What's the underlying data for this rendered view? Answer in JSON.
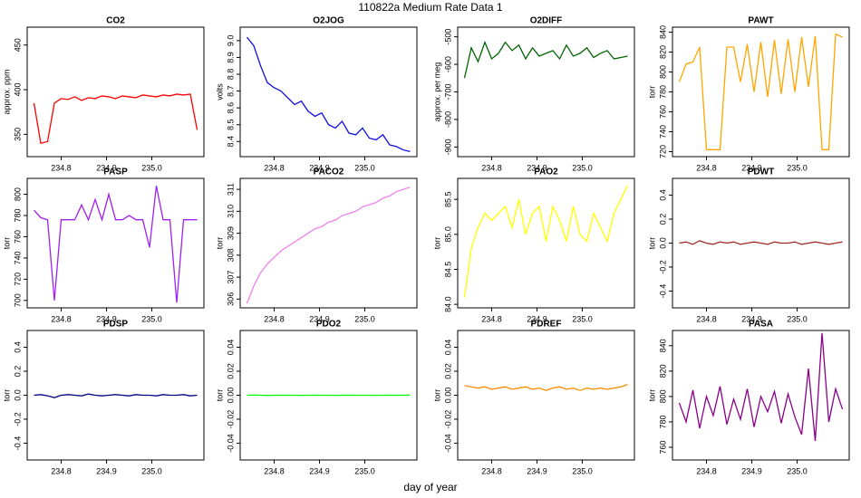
{
  "title": "110822a   Medium Rate Data 1",
  "xlabel": "day of year",
  "chart_data": [
    {
      "type": "line",
      "title": "CO2",
      "ylabel": "approx. ppm",
      "color": "#ff0000",
      "xlim": [
        234.725,
        235.115
      ],
      "xticks": [
        234.8,
        234.9,
        {
          "value": 235,
          "label": "235.0"
        }
      ],
      "ylim": [
        325,
        470
      ],
      "yticks": [
        350,
        400,
        450
      ],
      "x": [
        234.74,
        234.755,
        234.77,
        234.785,
        234.8,
        234.815,
        234.83,
        234.845,
        234.86,
        234.875,
        234.89,
        234.905,
        234.92,
        234.935,
        234.95,
        234.965,
        234.98,
        234.995,
        235.01,
        235.025,
        235.04,
        235.055,
        235.07,
        235.085,
        235.1
      ],
      "values": [
        385,
        340,
        342,
        385,
        390,
        389,
        392,
        388,
        391,
        390,
        393,
        392,
        390,
        393,
        392,
        391,
        394,
        393,
        392,
        394,
        393,
        395,
        394,
        395,
        355
      ]
    },
    {
      "type": "line",
      "title": "O2JOG",
      "ylabel": "volts",
      "color": "#1010e0",
      "xlim": [
        234.725,
        235.115
      ],
      "xticks": [
        234.8,
        234.9,
        {
          "value": 235,
          "label": "235.0"
        }
      ],
      "ylim": [
        8.31,
        9.08
      ],
      "yticks": [
        8.4,
        8.5,
        8.6,
        8.7,
        8.8,
        8.9,
        {
          "value": 9,
          "label": "9.0"
        }
      ],
      "x": [
        234.74,
        234.755,
        234.77,
        234.785,
        234.8,
        234.815,
        234.83,
        234.845,
        234.86,
        234.875,
        234.89,
        234.905,
        234.92,
        234.935,
        234.95,
        234.965,
        234.98,
        234.995,
        235.01,
        235.025,
        235.04,
        235.055,
        235.07,
        235.085,
        235.1
      ],
      "values": [
        9.02,
        8.97,
        8.85,
        8.75,
        8.72,
        8.7,
        8.66,
        8.62,
        8.64,
        8.58,
        8.55,
        8.57,
        8.5,
        8.48,
        8.52,
        8.45,
        8.44,
        8.48,
        8.42,
        8.41,
        8.44,
        8.38,
        8.37,
        8.35,
        8.34
      ]
    },
    {
      "type": "line",
      "title": "O2DIFF",
      "ylabel": "approx. per meg",
      "color": "#006400",
      "xlim": [
        234.725,
        235.115
      ],
      "xticks": [
        234.8,
        234.9,
        {
          "value": 235,
          "label": "235.0"
        }
      ],
      "ylim": [
        -935,
        -465
      ],
      "yticks": [
        -900,
        -800,
        -700,
        -600,
        -500
      ],
      "x": [
        234.74,
        234.755,
        234.77,
        234.785,
        234.8,
        234.815,
        234.83,
        234.845,
        234.86,
        234.875,
        234.89,
        234.905,
        234.92,
        234.935,
        234.95,
        234.965,
        234.98,
        234.995,
        235.01,
        235.025,
        235.04,
        235.055,
        235.07,
        235.085,
        235.1
      ],
      "values": [
        -650,
        -540,
        -590,
        -520,
        -580,
        -560,
        -520,
        -550,
        -530,
        -580,
        -540,
        -570,
        -560,
        -550,
        -580,
        -530,
        -570,
        -560,
        -540,
        -575,
        -560,
        -550,
        -580,
        -575,
        -570
      ]
    },
    {
      "type": "line",
      "title": "PAWT",
      "ylabel": "torr",
      "color": "#ffa500",
      "xlim": [
        234.725,
        235.115
      ],
      "xticks": [
        234.8,
        234.9,
        {
          "value": 235,
          "label": "235.0"
        }
      ],
      "ylim": [
        715,
        845
      ],
      "yticks": [
        720,
        740,
        760,
        780,
        800,
        820,
        840
      ],
      "x": [
        234.74,
        234.755,
        234.77,
        234.785,
        234.8,
        234.815,
        234.83,
        234.845,
        234.86,
        234.875,
        234.89,
        234.905,
        234.92,
        234.935,
        234.95,
        234.965,
        234.98,
        234.995,
        235.01,
        235.025,
        235.04,
        235.055,
        235.07,
        235.085,
        235.1
      ],
      "values": [
        790,
        808,
        810,
        825,
        722,
        722,
        722,
        825,
        825,
        790,
        828,
        780,
        830,
        775,
        832,
        778,
        833,
        780,
        835,
        785,
        836,
        722,
        722,
        838,
        835
      ]
    },
    {
      "type": "line",
      "title": "PASP",
      "ylabel": "torr",
      "color": "#a020f0",
      "xlim": [
        234.725,
        235.115
      ],
      "xticks": [
        234.8,
        234.9,
        {
          "value": 235,
          "label": "235.0"
        }
      ],
      "ylim": [
        693,
        815
      ],
      "yticks": [
        700,
        720,
        740,
        760,
        780,
        800
      ],
      "x": [
        234.74,
        234.755,
        234.77,
        234.785,
        234.8,
        234.815,
        234.83,
        234.845,
        234.86,
        234.875,
        234.89,
        234.905,
        234.92,
        234.935,
        234.95,
        234.965,
        234.98,
        234.995,
        235.01,
        235.025,
        235.04,
        235.055,
        235.07,
        235.085,
        235.1
      ],
      "values": [
        785,
        778,
        776,
        700,
        776,
        776,
        776,
        790,
        776,
        795,
        776,
        800,
        776,
        776,
        780,
        776,
        776,
        750,
        808,
        776,
        776,
        698,
        776,
        776,
        776
      ]
    },
    {
      "type": "line",
      "title": "PACO2",
      "ylabel": "torr",
      "color": "#ee82ee",
      "xlim": [
        234.725,
        235.115
      ],
      "xticks": [
        234.8,
        234.9,
        {
          "value": 235,
          "label": "235.0"
        }
      ],
      "ylim": [
        305.6,
        311.5
      ],
      "yticks": [
        306,
        307,
        308,
        309,
        310,
        311
      ],
      "x": [
        234.74,
        234.755,
        234.77,
        234.785,
        234.8,
        234.815,
        234.83,
        234.845,
        234.86,
        234.875,
        234.89,
        234.905,
        234.92,
        234.935,
        234.95,
        234.965,
        234.98,
        234.995,
        235.01,
        235.025,
        235.04,
        235.055,
        235.07,
        235.085,
        235.1
      ],
      "values": [
        305.8,
        306.6,
        307.2,
        307.6,
        307.9,
        308.2,
        308.4,
        308.6,
        308.8,
        309,
        309.2,
        309.3,
        309.5,
        309.6,
        309.8,
        309.9,
        310,
        310.2,
        310.3,
        310.4,
        310.6,
        310.7,
        310.9,
        311,
        311.1
      ]
    },
    {
      "type": "line",
      "title": "PAO2",
      "ylabel": "torr",
      "color": "#ffff00",
      "xlim": [
        234.725,
        235.115
      ],
      "xticks": [
        234.8,
        234.9,
        {
          "value": 235,
          "label": "235.0"
        }
      ],
      "ylim": [
        83.95,
        85.8
      ],
      "yticks": [
        {
          "value": 84,
          "label": "84.0"
        },
        84.5,
        {
          "value": 85,
          "label": "85.0"
        },
        85.5
      ],
      "x": [
        234.74,
        234.755,
        234.77,
        234.785,
        234.8,
        234.815,
        234.83,
        234.845,
        234.86,
        234.875,
        234.89,
        234.905,
        234.92,
        234.935,
        234.95,
        234.965,
        234.98,
        234.995,
        235.01,
        235.025,
        235.04,
        235.055,
        235.07,
        235.085,
        235.1
      ],
      "values": [
        84.1,
        84.8,
        85.1,
        85.3,
        85.2,
        85.3,
        85.4,
        85.1,
        85.5,
        85,
        85.3,
        85.4,
        84.9,
        85.4,
        85.2,
        84.9,
        85.4,
        85,
        84.9,
        85.3,
        85.1,
        84.9,
        85.3,
        85.5,
        85.7
      ]
    },
    {
      "type": "line",
      "title": "PDWT",
      "ylabel": "torr",
      "color": "#a52a2a",
      "xlim": [
        234.725,
        235.115
      ],
      "xticks": [
        234.8,
        234.9,
        {
          "value": 235,
          "label": "235.0"
        }
      ],
      "ylim": [
        -0.54,
        0.54
      ],
      "yticks": [
        -0.4,
        -0.2,
        {
          "value": 0,
          "label": "0.0"
        },
        0.2,
        0.4
      ],
      "x": [
        234.74,
        234.755,
        234.77,
        234.785,
        234.8,
        234.815,
        234.83,
        234.845,
        234.86,
        234.875,
        234.89,
        234.905,
        234.92,
        234.935,
        234.95,
        234.965,
        234.98,
        234.995,
        235.01,
        235.025,
        235.04,
        235.055,
        235.07,
        235.085,
        235.1
      ],
      "values": [
        0,
        0.01,
        -0.01,
        0.02,
        0,
        -0.01,
        0.01,
        0,
        0.01,
        -0.01,
        0,
        0.01,
        0,
        -0.01,
        0.01,
        0,
        0,
        0.01,
        -0.01,
        0,
        0.01,
        0,
        -0.01,
        0,
        0.01
      ]
    },
    {
      "type": "line",
      "title": "PDSP",
      "ylabel": "torr",
      "color": "#000080",
      "xlim": [
        234.725,
        235.115
      ],
      "xticks": [
        234.8,
        234.9,
        {
          "value": 235,
          "label": "235.0"
        }
      ],
      "ylim": [
        -0.54,
        0.54
      ],
      "yticks": [
        -0.4,
        -0.2,
        {
          "value": 0,
          "label": "0.0"
        },
        0.2,
        0.4
      ],
      "x": [
        234.74,
        234.755,
        234.77,
        234.785,
        234.8,
        234.815,
        234.83,
        234.845,
        234.86,
        234.875,
        234.89,
        234.905,
        234.92,
        234.935,
        234.95,
        234.965,
        234.98,
        234.995,
        235.01,
        235.025,
        235.04,
        235.055,
        235.07,
        235.085,
        235.1
      ],
      "values": [
        0,
        0.005,
        -0.005,
        -0.02,
        0,
        0.005,
        0,
        -0.005,
        0.01,
        0,
        -0.005,
        0,
        0.005,
        0,
        -0.005,
        0.005,
        0,
        0,
        -0.005,
        0.005,
        0,
        0,
        0.005,
        -0.005,
        0
      ]
    },
    {
      "type": "line",
      "title": "PDO2",
      "ylabel": "torr",
      "color": "#00ff00",
      "xlim": [
        234.725,
        235.115
      ],
      "xticks": [
        234.8,
        234.9,
        {
          "value": 235,
          "label": "235.0"
        }
      ],
      "ylim": [
        -0.054,
        0.054
      ],
      "yticks": [
        -0.04,
        -0.02,
        {
          "value": 0,
          "label": "0.00"
        },
        0.02,
        0.04
      ],
      "x": [
        234.74,
        234.755,
        234.77,
        234.785,
        234.8,
        234.815,
        234.83,
        234.845,
        234.86,
        234.875,
        234.89,
        234.905,
        234.92,
        234.935,
        234.95,
        234.965,
        234.98,
        234.995,
        235.01,
        235.025,
        235.04,
        235.055,
        235.07,
        235.085,
        235.1
      ],
      "values": [
        0,
        0.0002,
        0,
        -0.0002,
        0,
        0.0001,
        0,
        0,
        -0.0001,
        0,
        0.0001,
        0,
        0,
        -0.0001,
        0,
        0.0001,
        0,
        0,
        0,
        -0.0001,
        0,
        0.0001,
        0,
        0,
        0.0002
      ]
    },
    {
      "type": "line",
      "title": "PDREF",
      "ylabel": "torr",
      "color": "#ff8c00",
      "xlim": [
        234.725,
        235.115
      ],
      "xticks": [
        234.8,
        234.9,
        {
          "value": 235,
          "label": "235.0"
        }
      ],
      "ylim": [
        -0.054,
        0.054
      ],
      "yticks": [
        -0.04,
        -0.02,
        {
          "value": 0,
          "label": "0.00"
        },
        0.02,
        0.04
      ],
      "x": [
        234.74,
        234.755,
        234.77,
        234.785,
        234.8,
        234.815,
        234.83,
        234.845,
        234.86,
        234.875,
        234.89,
        234.905,
        234.92,
        234.935,
        234.95,
        234.965,
        234.98,
        234.995,
        235.01,
        235.025,
        235.04,
        235.055,
        235.07,
        235.085,
        235.1
      ],
      "values": [
        0.008,
        0.007,
        0.006,
        0.007,
        0.005,
        0.006,
        0.007,
        0.005,
        0.006,
        0.007,
        0.005,
        0.006,
        0.004,
        0.006,
        0.007,
        0.005,
        0.006,
        0.004,
        0.006,
        0.005,
        0.006,
        0.005,
        0.006,
        0.007,
        0.009
      ]
    },
    {
      "type": "line",
      "title": "PASA",
      "ylabel": "torr",
      "color": "#8b008b",
      "xlim": [
        234.725,
        235.115
      ],
      "xticks": [
        234.8,
        234.9,
        {
          "value": 235,
          "label": "235.0"
        }
      ],
      "ylim": [
        750,
        852
      ],
      "yticks": [
        760,
        780,
        800,
        820,
        840
      ],
      "x": [
        234.74,
        234.755,
        234.77,
        234.785,
        234.8,
        234.815,
        234.83,
        234.845,
        234.86,
        234.875,
        234.89,
        234.905,
        234.92,
        234.935,
        234.95,
        234.965,
        234.98,
        234.995,
        235.01,
        235.025,
        235.04,
        235.055,
        235.07,
        235.085,
        235.1
      ],
      "values": [
        795,
        780,
        805,
        775,
        800,
        785,
        808,
        778,
        798,
        782,
        806,
        776,
        800,
        788,
        804,
        779,
        802,
        784,
        770,
        822,
        765,
        850,
        780,
        806,
        790
      ]
    }
  ]
}
